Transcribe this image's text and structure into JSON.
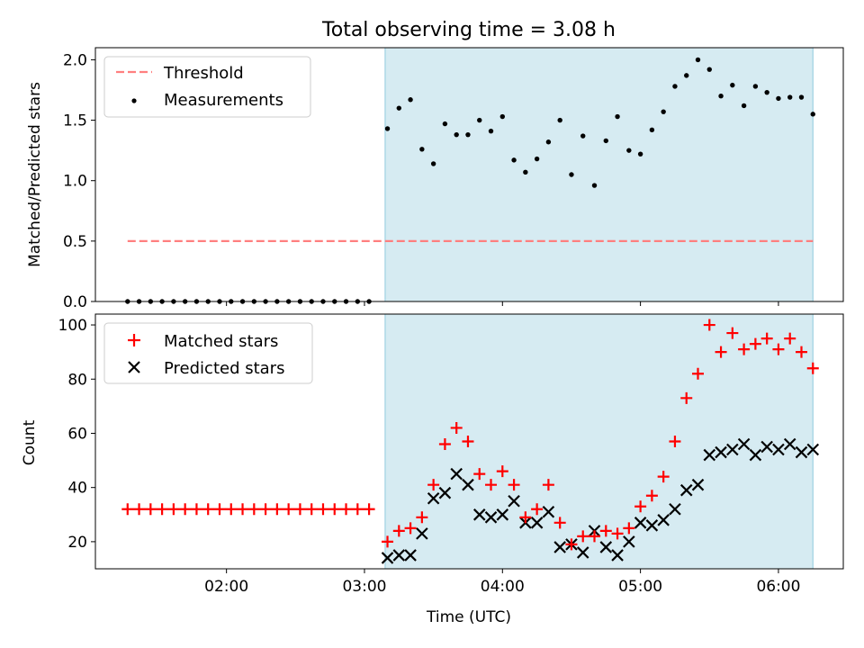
{
  "figure": {
    "title": "Total observing time = 3.08 h",
    "xlabel": "Time (UTC)",
    "xtick_labels": [
      "02:00",
      "03:00",
      "04:00",
      "05:00",
      "06:00"
    ],
    "xlim_hours": [
      1.05,
      6.47
    ]
  },
  "shaded_region": {
    "x_start": "03:09",
    "x_end": "06:15",
    "color": "#add8e6"
  },
  "chart_data": [
    {
      "type": "scatter",
      "title": "Total observing time = 3.08 h",
      "ylabel": "Matched/Predicted stars",
      "ylim": [
        0,
        2.1
      ],
      "yticks": [
        0.0,
        0.5,
        1.0,
        1.5,
        2.0
      ],
      "ytick_labels": [
        "0.0",
        "0.5",
        "1.0",
        "1.5",
        "2.0"
      ],
      "legend_position": "upper-left",
      "threshold": {
        "name": "Threshold",
        "value": 0.5,
        "x_start": "01:17",
        "x_end": "06:15",
        "color": "#ff7f7f",
        "style": "dashed"
      },
      "series": [
        {
          "name": "Measurements",
          "color": "#000000",
          "marker": "dot",
          "x": [
            "01:17",
            "01:22",
            "01:27",
            "01:32",
            "01:37",
            "01:42",
            "01:47",
            "01:52",
            "01:57",
            "02:02",
            "02:07",
            "02:12",
            "02:17",
            "02:22",
            "02:27",
            "02:32",
            "02:37",
            "02:42",
            "02:47",
            "02:52",
            "02:57",
            "03:02",
            "03:10",
            "03:15",
            "03:20",
            "03:25",
            "03:30",
            "03:35",
            "03:40",
            "03:45",
            "03:50",
            "03:55",
            "04:00",
            "04:05",
            "04:10",
            "04:15",
            "04:20",
            "04:25",
            "04:30",
            "04:35",
            "04:40",
            "04:45",
            "04:50",
            "04:55",
            "05:00",
            "05:05",
            "05:10",
            "05:15",
            "05:20",
            "05:25",
            "05:30",
            "05:35",
            "05:40",
            "05:45",
            "05:50",
            "05:55",
            "06:00",
            "06:05",
            "06:10",
            "06:15"
          ],
          "y": [
            0,
            0,
            0,
            0,
            0,
            0,
            0,
            0,
            0,
            0,
            0,
            0,
            0,
            0,
            0,
            0,
            0,
            0,
            0,
            0,
            0,
            0,
            1.43,
            1.6,
            1.67,
            1.26,
            1.14,
            1.47,
            1.38,
            1.38,
            1.5,
            1.41,
            1.53,
            1.17,
            1.07,
            1.18,
            1.32,
            1.5,
            1.05,
            1.37,
            0.96,
            1.33,
            1.53,
            1.25,
            1.22,
            1.42,
            1.57,
            1.78,
            1.87,
            2.0,
            1.92,
            1.7,
            1.79,
            1.62,
            1.78,
            1.73,
            1.68,
            1.69,
            1.69,
            1.55
          ]
        }
      ]
    },
    {
      "type": "scatter",
      "ylabel": "Count",
      "ylim": [
        10,
        104
      ],
      "yticks": [
        20,
        40,
        60,
        80,
        100
      ],
      "ytick_labels": [
        "20",
        "40",
        "60",
        "80",
        "100"
      ],
      "legend_position": "upper-left",
      "series": [
        {
          "name": "Matched stars",
          "color": "#ff0000",
          "marker": "plus",
          "x": [
            "01:17",
            "01:22",
            "01:27",
            "01:32",
            "01:37",
            "01:42",
            "01:47",
            "01:52",
            "01:57",
            "02:02",
            "02:07",
            "02:12",
            "02:17",
            "02:22",
            "02:27",
            "02:32",
            "02:37",
            "02:42",
            "02:47",
            "02:52",
            "02:57",
            "03:02",
            "03:10",
            "03:15",
            "03:20",
            "03:25",
            "03:30",
            "03:35",
            "03:40",
            "03:45",
            "03:50",
            "03:55",
            "04:00",
            "04:05",
            "04:10",
            "04:15",
            "04:20",
            "04:25",
            "04:30",
            "04:35",
            "04:40",
            "04:45",
            "04:50",
            "04:55",
            "05:00",
            "05:05",
            "05:10",
            "05:15",
            "05:20",
            "05:25",
            "05:30",
            "05:35",
            "05:40",
            "05:45",
            "05:50",
            "05:55",
            "06:00",
            "06:05",
            "06:10",
            "06:15"
          ],
          "y": [
            32,
            32,
            32,
            32,
            32,
            32,
            32,
            32,
            32,
            32,
            32,
            32,
            32,
            32,
            32,
            32,
            32,
            32,
            32,
            32,
            32,
            32,
            20,
            24,
            25,
            29,
            41,
            56,
            62,
            57,
            45,
            41,
            46,
            41,
            29,
            32,
            41,
            27,
            19,
            22,
            22,
            24,
            23,
            25,
            33,
            37,
            44,
            57,
            73,
            82,
            100,
            90,
            97,
            91,
            93,
            95,
            91,
            95,
            90,
            84
          ]
        },
        {
          "name": "Predicted stars",
          "color": "#000000",
          "marker": "x",
          "x": [
            "03:10",
            "03:15",
            "03:20",
            "03:25",
            "03:30",
            "03:35",
            "03:40",
            "03:45",
            "03:50",
            "03:55",
            "04:00",
            "04:05",
            "04:10",
            "04:15",
            "04:20",
            "04:25",
            "04:30",
            "04:35",
            "04:40",
            "04:45",
            "04:50",
            "04:55",
            "05:00",
            "05:05",
            "05:10",
            "05:15",
            "05:20",
            "05:25",
            "05:30",
            "05:35",
            "05:40",
            "05:45",
            "05:50",
            "05:55",
            "06:00",
            "06:05",
            "06:10",
            "06:15"
          ],
          "y": [
            14,
            15,
            15,
            23,
            36,
            38,
            45,
            41,
            30,
            29,
            30,
            35,
            27,
            27,
            31,
            18,
            19,
            16,
            24,
            18,
            15,
            20,
            27,
            26,
            28,
            32,
            39,
            41,
            52,
            53,
            54,
            56,
            52,
            55,
            54,
            56,
            53,
            54
          ]
        }
      ]
    }
  ]
}
